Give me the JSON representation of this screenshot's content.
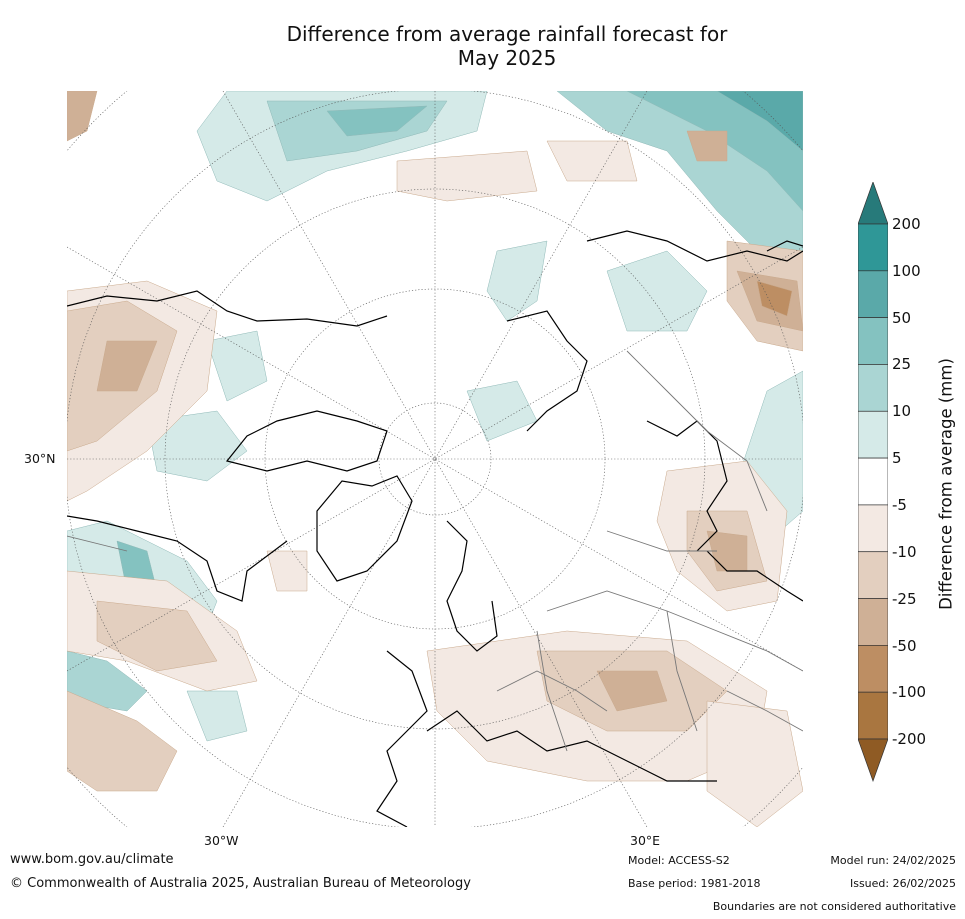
{
  "title": {
    "line1": "Difference from average rainfall forecast for",
    "line2": "May 2025"
  },
  "map": {
    "projection": "north-polar-stereographic",
    "labels": {
      "lat_30n": "30°N",
      "lon_30w": "30°W",
      "lon_30e": "30°E"
    }
  },
  "colorbar": {
    "title": "Difference from average (mm)",
    "ticks": [
      "200",
      "100",
      "50",
      "25",
      "10",
      "5",
      "-5",
      "-10",
      "-25",
      "-50",
      "-100",
      "-200"
    ],
    "colors": {
      "gt200": "#277a7a",
      "c100_200": "#2f9797",
      "c50_100": "#5aa9a9",
      "c25_50": "#84c2c0",
      "c10_25": "#aad5d3",
      "c5_10": "#d5eae8",
      "neutral": "#ffffff",
      "m5_10": "#f3e9e3",
      "m10_25": "#e3cfbf",
      "m25_50": "#cfb096",
      "m50_100": "#bd8e63",
      "m100_200": "#a97640",
      "lt200": "#8f5b24"
    }
  },
  "footer": {
    "website": "www.bom.gov.au/climate",
    "copyright": "© Commonwealth of Australia 2025, Australian Bureau of Meteorology",
    "model": "Model: ACCESS-S2",
    "base_period": "Base period: 1981-2018",
    "model_run": "Model run: 24/02/2025",
    "issued": "Issued: 26/02/2025",
    "disclaimer": "Boundaries are not considered authoritative"
  }
}
